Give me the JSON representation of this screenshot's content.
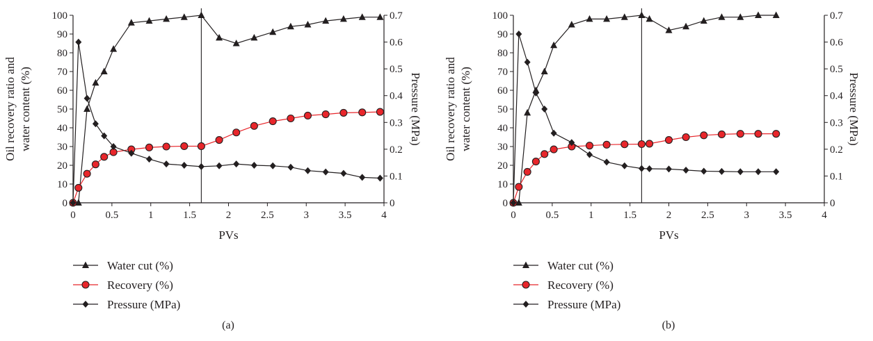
{
  "colors": {
    "axis": "#231f20",
    "water_cut": "#231f20",
    "recovery_line": "#e8262b",
    "recovery_fill": "#e8262b",
    "pressure": "#231f20"
  },
  "legend": {
    "water_cut": "Water cut (%)",
    "recovery": "Recovery (%)",
    "pressure": "Pressure (MPa)"
  },
  "chart_data": [
    {
      "type": "line",
      "caption": "(a)",
      "xlabel": "PVs",
      "ylabel_lines": [
        "Oil recovery ratio and",
        "water content (%)"
      ],
      "y2label": "Pressure (MPa)",
      "xlim": [
        0,
        4
      ],
      "ylim": [
        0,
        100
      ],
      "y2lim": [
        0,
        0.7
      ],
      "x_ticks": [
        "0",
        "0.5",
        "1",
        "1.5",
        "2",
        "2.5",
        "3",
        "3.5",
        "4"
      ],
      "y_ticks": [
        "0",
        "10",
        "20",
        "30",
        "40",
        "50",
        "60",
        "70",
        "80",
        "90",
        "100"
      ],
      "y2_ticks": [
        "0",
        "0.1",
        "0.2",
        "0.3",
        "0.4",
        "0.5",
        "0.6",
        "0.7"
      ],
      "vline_x": 1.65,
      "series": [
        {
          "name": "Water cut (%)",
          "axis": "left",
          "marker": "triangle",
          "x": [
            0,
            0.07,
            0.18,
            0.29,
            0.4,
            0.52,
            0.75,
            0.98,
            1.2,
            1.43,
            1.65,
            1.88,
            2.1,
            2.33,
            2.57,
            2.8,
            3.02,
            3.25,
            3.48,
            3.72,
            3.95
          ],
          "y": [
            0,
            0,
            50,
            64,
            70,
            82,
            96,
            97,
            98,
            99,
            100,
            88,
            85,
            88,
            91,
            94,
            95,
            97,
            98,
            99,
            99
          ]
        },
        {
          "name": "Recovery (%)",
          "axis": "left",
          "marker": "circle",
          "x": [
            0,
            0.07,
            0.18,
            0.29,
            0.4,
            0.52,
            0.75,
            0.98,
            1.2,
            1.43,
            1.65,
            1.88,
            2.1,
            2.33,
            2.57,
            2.8,
            3.02,
            3.25,
            3.48,
            3.72,
            3.95
          ],
          "y": [
            0,
            8,
            15.5,
            20.5,
            24.5,
            27,
            28.5,
            29.5,
            30,
            30.2,
            30.2,
            33.5,
            37.5,
            41,
            43.5,
            45,
            46.5,
            47.2,
            48,
            48.2,
            48.5
          ]
        },
        {
          "name": "Pressure (MPa)",
          "axis": "right",
          "marker": "diamond",
          "x": [
            0,
            0.07,
            0.18,
            0.29,
            0.4,
            0.52,
            0.75,
            0.98,
            1.2,
            1.43,
            1.65,
            1.88,
            2.1,
            2.33,
            2.57,
            2.8,
            3.02,
            3.25,
            3.48,
            3.72,
            3.95
          ],
          "y": [
            0,
            0.6,
            0.39,
            0.295,
            0.25,
            0.21,
            0.185,
            0.163,
            0.145,
            0.14,
            0.135,
            0.138,
            0.145,
            0.14,
            0.138,
            0.133,
            0.12,
            0.115,
            0.11,
            0.095,
            0.092
          ]
        }
      ]
    },
    {
      "type": "line",
      "caption": "(b)",
      "xlabel": "PVs",
      "ylabel_lines": [
        "Oil recovery ratio and",
        "water content (%)"
      ],
      "y2label": "Pressure (MPa)",
      "xlim": [
        0,
        4
      ],
      "ylim": [
        0,
        100
      ],
      "y2lim": [
        0,
        0.7
      ],
      "x_ticks": [
        "0",
        "0.5",
        "1",
        "1.5",
        "2",
        "2.5",
        "3",
        "3.5",
        "4"
      ],
      "y_ticks": [
        "0",
        "10",
        "20",
        "30",
        "40",
        "50",
        "60",
        "70",
        "80",
        "90",
        "100"
      ],
      "y2_ticks": [
        "0",
        "0.1",
        "0.2",
        "0.3",
        "0.4",
        "0.5",
        "0.6",
        "0.7"
      ],
      "vline_x": 1.65,
      "series": [
        {
          "name": "Water cut (%)",
          "axis": "left",
          "marker": "triangle",
          "x": [
            0,
            0.07,
            0.18,
            0.29,
            0.4,
            0.52,
            0.75,
            0.98,
            1.2,
            1.43,
            1.65,
            1.75,
            2.0,
            2.22,
            2.45,
            2.68,
            2.92,
            3.15,
            3.38
          ],
          "y": [
            0,
            0,
            48,
            60,
            70,
            84,
            95,
            98,
            98,
            99,
            100,
            98,
            92,
            94,
            97,
            99,
            99,
            100,
            100
          ]
        },
        {
          "name": "Recovery (%)",
          "axis": "left",
          "marker": "circle",
          "x": [
            0,
            0.07,
            0.18,
            0.29,
            0.4,
            0.52,
            0.75,
            0.98,
            1.2,
            1.43,
            1.65,
            1.75,
            2.0,
            2.22,
            2.45,
            2.68,
            2.92,
            3.15,
            3.38
          ],
          "y": [
            0,
            8.5,
            16.5,
            22,
            26,
            28.5,
            30,
            30.5,
            31,
            31.2,
            31.3,
            31.5,
            33.5,
            35,
            36,
            36.5,
            36.8,
            36.8,
            36.8
          ]
        },
        {
          "name": "Pressure (MPa)",
          "axis": "right",
          "marker": "diamond",
          "x": [
            0,
            0.07,
            0.18,
            0.29,
            0.4,
            0.52,
            0.75,
            0.98,
            1.2,
            1.43,
            1.65,
            1.75,
            2.0,
            2.22,
            2.45,
            2.68,
            2.92,
            3.15,
            3.38
          ],
          "y": [
            0,
            0.63,
            0.525,
            0.41,
            0.35,
            0.26,
            0.225,
            0.18,
            0.152,
            0.138,
            0.128,
            0.127,
            0.126,
            0.122,
            0.118,
            0.117,
            0.116,
            0.116,
            0.116
          ]
        }
      ]
    }
  ]
}
